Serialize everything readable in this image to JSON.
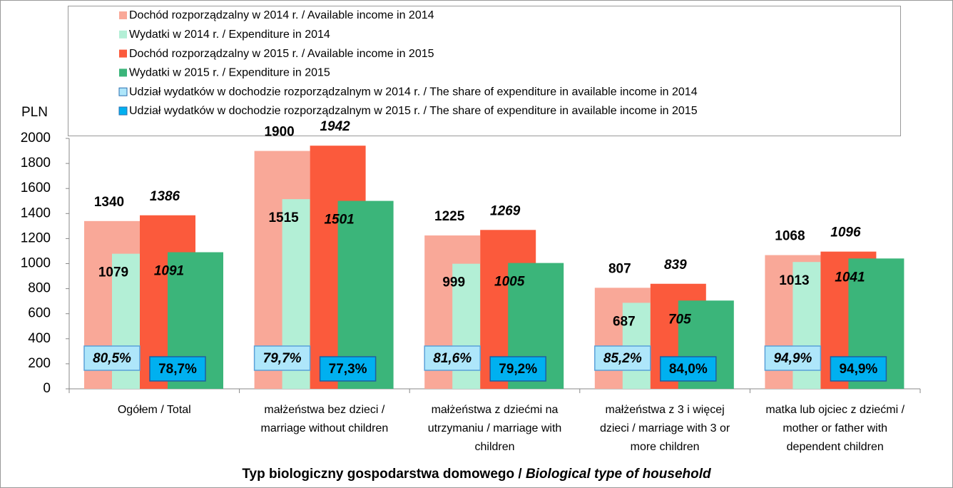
{
  "chart_data": {
    "type": "bar",
    "ylabel": "PLN",
    "xlabel": [
      "Typ biologiczny gospodarstwa domowego / ",
      "Biological type of household"
    ],
    "categories": [
      [
        "Ogółem / Total"
      ],
      [
        "małżeństwa bez dzieci /",
        "marriage without children"
      ],
      [
        "małżeństwa z dziećmi na",
        "utrzymaniu / marriage with",
        "children"
      ],
      [
        "małżeństwa z 3 i więcej",
        "dzieci / marriage with 3 or",
        "more children"
      ],
      [
        "matka lub ojciec z dziećmi /",
        "mother or father with",
        "dependent children"
      ]
    ],
    "series": [
      {
        "name": "Dochód rozporządzalny w 2014 r. / Available income in 2014",
        "color": "#f9a898",
        "values": [
          1340,
          1900,
          1225,
          807,
          1068
        ]
      },
      {
        "name": "Wydatki w 2014 r. / Expenditure in 2014",
        "color": "#b3efd6",
        "values": [
          1079,
          1515,
          999,
          687,
          1013
        ]
      },
      {
        "name": "Dochód rozporządzalny w 2015 r. / Available income in 2015",
        "color": "#fb5a3c",
        "values": [
          1386,
          1942,
          1269,
          839,
          1096
        ]
      },
      {
        "name": "Wydatki w 2015 r. / Expenditure in 2015",
        "color": "#3bb57a",
        "values": [
          1091,
          1501,
          1005,
          705,
          1041
        ]
      },
      {
        "name": "Udział wydatków w dochodzie rozporządzalnym w 2014 r. / The share of expenditure in available income in 2014",
        "color": "#aee6fa",
        "values": [
          80.5,
          79.7,
          81.6,
          85.2,
          94.9
        ],
        "value_labels": [
          "80,5%",
          "79,7%",
          "81,6%",
          "85,2%",
          "94,9%"
        ]
      },
      {
        "name": "Udział wydatków w dochodzie rozporządzalnym w 2015 r. / The share of expenditure in available income in 2015",
        "color": "#00b0f0",
        "values": [
          78.7,
          77.3,
          79.2,
          84.0,
          94.9
        ],
        "value_labels": [
          "78,7%",
          "77,3%",
          "79,2%",
          "84,0%",
          "94,9%"
        ]
      }
    ],
    "ylim": [
      0,
      2000
    ],
    "yticks": [
      0,
      200,
      400,
      600,
      800,
      1000,
      1200,
      1400,
      1600,
      1800,
      2000
    ],
    "grid": false
  }
}
